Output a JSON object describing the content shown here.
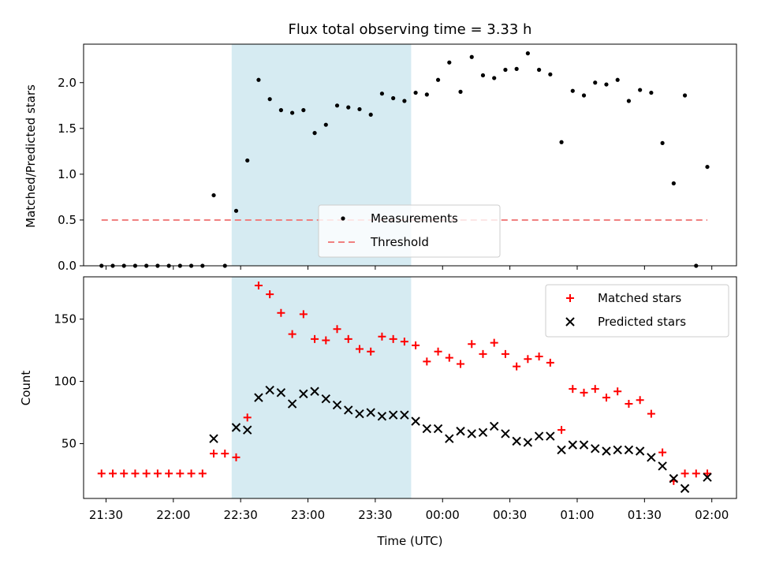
{
  "chart_data": [
    {
      "type": "scatter",
      "title": "Flux total observing time = 3.33 h",
      "xlabel": "",
      "ylabel": "Matched/Predicted stars",
      "ylim": [
        0,
        2.42
      ],
      "yticks": [
        "0.0",
        "0.5",
        "1.0",
        "1.5",
        "2.0"
      ],
      "legend_position": "lower-center",
      "observing_window": [
        "22:26",
        "23:46"
      ],
      "series": [
        {
          "name": "Measurements",
          "color": "#000000",
          "marker": "dot",
          "points": [
            [
              "21:28",
              0.0
            ],
            [
              "21:33",
              0.0
            ],
            [
              "21:38",
              0.0
            ],
            [
              "21:43",
              0.0
            ],
            [
              "21:48",
              0.0
            ],
            [
              "21:53",
              0.0
            ],
            [
              "21:58",
              0.0
            ],
            [
              "22:03",
              0.0
            ],
            [
              "22:08",
              0.0
            ],
            [
              "22:13",
              0.0
            ],
            [
              "22:18",
              0.77
            ],
            [
              "22:23",
              0.0
            ],
            [
              "22:28",
              0.6
            ],
            [
              "22:33",
              1.15
            ],
            [
              "22:38",
              2.03
            ],
            [
              "22:43",
              1.82
            ],
            [
              "22:48",
              1.7
            ],
            [
              "22:53",
              1.67
            ],
            [
              "22:58",
              1.7
            ],
            [
              "23:03",
              1.45
            ],
            [
              "23:08",
              1.54
            ],
            [
              "23:13",
              1.75
            ],
            [
              "23:18",
              1.73
            ],
            [
              "23:23",
              1.71
            ],
            [
              "23:28",
              1.65
            ],
            [
              "23:33",
              1.88
            ],
            [
              "23:38",
              1.83
            ],
            [
              "23:43",
              1.8
            ],
            [
              "23:48",
              1.89
            ],
            [
              "23:53",
              1.87
            ],
            [
              "23:58",
              2.03
            ],
            [
              "00:03",
              2.22
            ],
            [
              "00:08",
              1.9
            ],
            [
              "00:13",
              2.28
            ],
            [
              "00:18",
              2.08
            ],
            [
              "00:23",
              2.05
            ],
            [
              "00:28",
              2.14
            ],
            [
              "00:33",
              2.15
            ],
            [
              "00:38",
              2.32
            ],
            [
              "00:43",
              2.14
            ],
            [
              "00:48",
              2.09
            ],
            [
              "00:53",
              1.35
            ],
            [
              "00:58",
              1.91
            ],
            [
              "01:03",
              1.86
            ],
            [
              "01:08",
              2.0
            ],
            [
              "01:13",
              1.98
            ],
            [
              "01:18",
              2.03
            ],
            [
              "01:23",
              1.8
            ],
            [
              "01:28",
              1.92
            ],
            [
              "01:33",
              1.89
            ],
            [
              "01:38",
              1.34
            ],
            [
              "01:43",
              0.9
            ],
            [
              "01:48",
              1.86
            ],
            [
              "01:53",
              0.0
            ],
            [
              "01:58",
              1.08
            ]
          ]
        },
        {
          "name": "Threshold",
          "color": "#f08080",
          "style": "dashed",
          "points": [
            [
              "21:28",
              0.5
            ],
            [
              "01:58",
              0.5
            ]
          ]
        }
      ]
    },
    {
      "type": "scatter",
      "xlabel": "Time (UTC)",
      "ylabel": "Count",
      "ylim": [
        6,
        184
      ],
      "yticks": [
        "50",
        "100",
        "150"
      ],
      "xticks": [
        "21:30",
        "22:00",
        "22:30",
        "23:00",
        "23:30",
        "00:00",
        "00:30",
        "01:00",
        "01:30",
        "02:00"
      ],
      "xrange": [
        "21:20",
        "02:11"
      ],
      "legend_position": "top-right",
      "observing_window": [
        "22:26",
        "23:46"
      ],
      "series": [
        {
          "name": "Matched stars",
          "color": "#ff0000",
          "marker": "plus",
          "points": [
            [
              "21:28",
              26
            ],
            [
              "21:33",
              26
            ],
            [
              "21:38",
              26
            ],
            [
              "21:43",
              26
            ],
            [
              "21:48",
              26
            ],
            [
              "21:53",
              26
            ],
            [
              "21:58",
              26
            ],
            [
              "22:03",
              26
            ],
            [
              "22:08",
              26
            ],
            [
              "22:13",
              26
            ],
            [
              "22:18",
              42
            ],
            [
              "22:23",
              42
            ],
            [
              "22:28",
              39
            ],
            [
              "22:33",
              71
            ],
            [
              "22:38",
              177
            ],
            [
              "22:43",
              170
            ],
            [
              "22:48",
              155
            ],
            [
              "22:53",
              138
            ],
            [
              "22:58",
              154
            ],
            [
              "23:03",
              134
            ],
            [
              "23:08",
              133
            ],
            [
              "23:13",
              142
            ],
            [
              "23:18",
              134
            ],
            [
              "23:23",
              126
            ],
            [
              "23:28",
              124
            ],
            [
              "23:33",
              136
            ],
            [
              "23:38",
              134
            ],
            [
              "23:43",
              132
            ],
            [
              "23:48",
              129
            ],
            [
              "23:53",
              116
            ],
            [
              "23:58",
              124
            ],
            [
              "00:03",
              119
            ],
            [
              "00:08",
              114
            ],
            [
              "00:13",
              130
            ],
            [
              "00:18",
              122
            ],
            [
              "00:23",
              131
            ],
            [
              "00:28",
              122
            ],
            [
              "00:33",
              112
            ],
            [
              "00:38",
              118
            ],
            [
              "00:43",
              120
            ],
            [
              "00:48",
              115
            ],
            [
              "00:53",
              61
            ],
            [
              "00:58",
              94
            ],
            [
              "01:03",
              91
            ],
            [
              "01:08",
              94
            ],
            [
              "01:13",
              87
            ],
            [
              "01:18",
              92
            ],
            [
              "01:23",
              82
            ],
            [
              "01:28",
              85
            ],
            [
              "01:33",
              74
            ],
            [
              "01:38",
              43
            ],
            [
              "01:43",
              20
            ],
            [
              "01:48",
              26
            ],
            [
              "01:53",
              26
            ],
            [
              "01:58",
              26
            ]
          ]
        },
        {
          "name": "Predicted stars",
          "color": "#000000",
          "marker": "x",
          "points": [
            [
              "22:18",
              54
            ],
            [
              "22:28",
              63
            ],
            [
              "22:33",
              61
            ],
            [
              "22:38",
              87
            ],
            [
              "22:43",
              93
            ],
            [
              "22:48",
              91
            ],
            [
              "22:53",
              82
            ],
            [
              "22:58",
              90
            ],
            [
              "23:03",
              92
            ],
            [
              "23:08",
              86
            ],
            [
              "23:13",
              81
            ],
            [
              "23:18",
              77
            ],
            [
              "23:23",
              74
            ],
            [
              "23:28",
              75
            ],
            [
              "23:33",
              72
            ],
            [
              "23:38",
              73
            ],
            [
              "23:43",
              73
            ],
            [
              "23:48",
              68
            ],
            [
              "23:53",
              62
            ],
            [
              "23:58",
              62
            ],
            [
              "00:03",
              54
            ],
            [
              "00:08",
              60
            ],
            [
              "00:13",
              58
            ],
            [
              "00:18",
              59
            ],
            [
              "00:23",
              64
            ],
            [
              "00:28",
              58
            ],
            [
              "00:33",
              52
            ],
            [
              "00:38",
              51
            ],
            [
              "00:43",
              56
            ],
            [
              "00:48",
              56
            ],
            [
              "00:53",
              45
            ],
            [
              "00:58",
              49
            ],
            [
              "01:03",
              49
            ],
            [
              "01:08",
              46
            ],
            [
              "01:13",
              44
            ],
            [
              "01:18",
              45
            ],
            [
              "01:23",
              45
            ],
            [
              "01:28",
              44
            ],
            [
              "01:33",
              39
            ],
            [
              "01:38",
              32
            ],
            [
              "01:43",
              22
            ],
            [
              "01:48",
              14
            ],
            [
              "01:58",
              23
            ]
          ]
        }
      ]
    }
  ]
}
